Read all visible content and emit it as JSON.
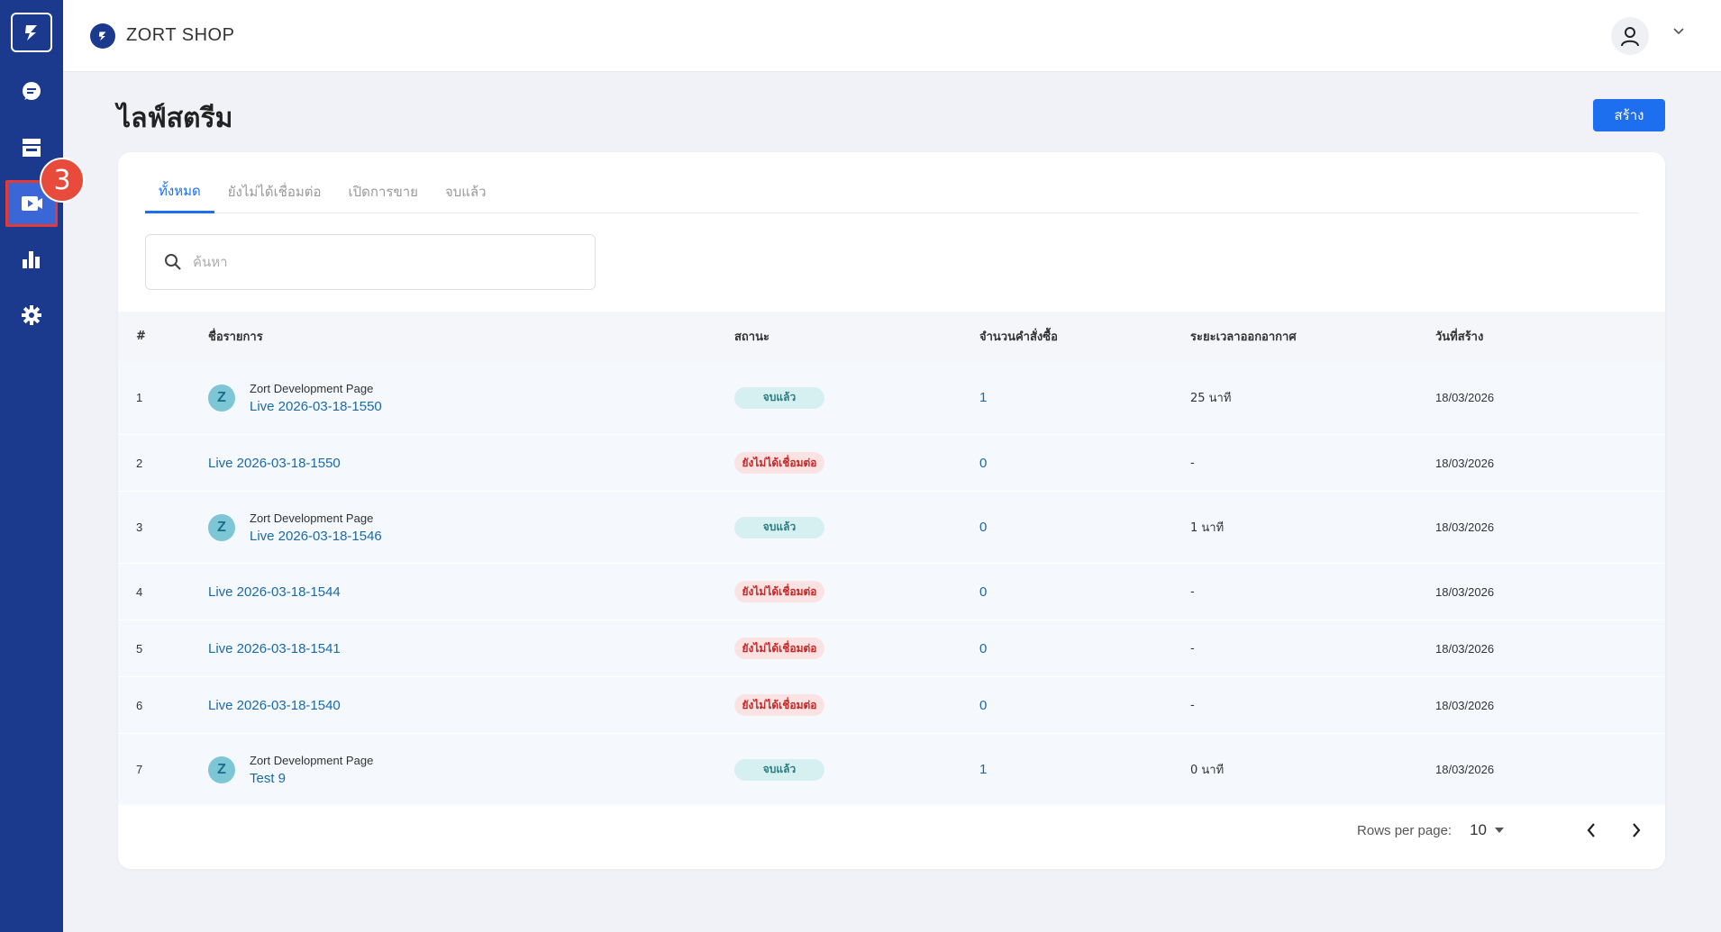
{
  "app": {
    "shop_name": "ZORT SHOP"
  },
  "sidebar": {
    "items": [
      {
        "icon": "chat-icon"
      },
      {
        "icon": "store-icon"
      },
      {
        "icon": "live-video-icon",
        "active": true,
        "badge": "3"
      },
      {
        "icon": "bar-chart-icon"
      },
      {
        "icon": "gear-icon"
      }
    ]
  },
  "page": {
    "title": "ไลฟ์สตรีม",
    "create_label": "สร้าง"
  },
  "tabs": [
    {
      "label": "ทั้งหมด",
      "active": true
    },
    {
      "label": "ยังไม่ได้เชื่อมต่อ"
    },
    {
      "label": "เปิดการขาย"
    },
    {
      "label": "จบแล้ว"
    }
  ],
  "search": {
    "placeholder": "ค้นหา"
  },
  "table": {
    "headers": [
      "#",
      "ชื่อรายการ",
      "สถานะ",
      "จำนวนคำสั่งซื้อ",
      "ระยะเวลาออกอากาศ",
      "วันที่สร้าง"
    ],
    "rows": [
      {
        "num": "1",
        "page": "Zort Development Page",
        "name": "Live 2026-03-18-1550",
        "status": "จบแล้ว",
        "status_type": "done",
        "orders": "1",
        "duration": "25 นาที",
        "date": "18/03/2026"
      },
      {
        "num": "2",
        "page": "",
        "name": "Live 2026-03-18-1550",
        "status": "ยังไม่ได้เชื่อมต่อ",
        "status_type": "notconn",
        "orders": "0",
        "duration": "-",
        "date": "18/03/2026"
      },
      {
        "num": "3",
        "page": "Zort Development Page",
        "name": "Live 2026-03-18-1546",
        "status": "จบแล้ว",
        "status_type": "done",
        "orders": "0",
        "duration": "1 นาที",
        "date": "18/03/2026"
      },
      {
        "num": "4",
        "page": "",
        "name": "Live 2026-03-18-1544",
        "status": "ยังไม่ได้เชื่อมต่อ",
        "status_type": "notconn",
        "orders": "0",
        "duration": "-",
        "date": "18/03/2026"
      },
      {
        "num": "5",
        "page": "",
        "name": "Live 2026-03-18-1541",
        "status": "ยังไม่ได้เชื่อมต่อ",
        "status_type": "notconn",
        "orders": "0",
        "duration": "-",
        "date": "18/03/2026"
      },
      {
        "num": "6",
        "page": "",
        "name": "Live 2026-03-18-1540",
        "status": "ยังไม่ได้เชื่อมต่อ",
        "status_type": "notconn",
        "orders": "0",
        "duration": "-",
        "date": "18/03/2026"
      },
      {
        "num": "7",
        "page": "Zort Development Page",
        "name": "Test 9",
        "status": "จบแล้ว",
        "status_type": "done",
        "orders": "1",
        "duration": "0 นาที",
        "date": "18/03/2026"
      }
    ]
  },
  "pagination": {
    "rows_per_page_label": "Rows per page:",
    "rows_per_page_value": "10"
  },
  "colors": {
    "sidebar": "#1b3a8e",
    "accent": "#1e6ff0",
    "badge": "#e84b3c"
  }
}
